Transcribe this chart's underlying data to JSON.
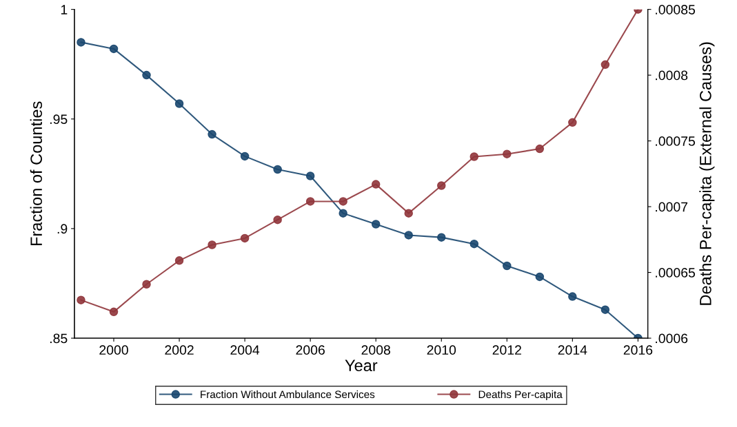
{
  "chart_data": {
    "type": "line",
    "xlabel": "Year",
    "ylabel": "Fraction of Counties",
    "y2label": "Deaths Per-capita (External Causes)",
    "x": [
      1999,
      2000,
      2001,
      2002,
      2003,
      2004,
      2005,
      2006,
      2007,
      2008,
      2009,
      2010,
      2011,
      2012,
      2013,
      2014,
      2015,
      2016
    ],
    "series": [
      {
        "name": "Fraction Without Ambulance Services",
        "color": "#1a476f",
        "values": [
          0.985,
          0.982,
          0.97,
          0.957,
          0.943,
          0.933,
          0.927,
          0.924,
          0.907,
          0.902,
          0.897,
          0.896,
          0.893,
          0.883,
          0.878,
          0.869,
          0.863,
          0.85
        ]
      },
      {
        "name": "Deaths Per-capita",
        "color": "#90353b",
        "axis": "y2",
        "values": [
          0.000629,
          0.00062,
          0.000641,
          0.000659,
          0.000671,
          0.000676,
          0.00069,
          0.000704,
          0.000704,
          0.000717,
          0.000695,
          0.000716,
          0.000738,
          0.00074,
          0.000744,
          0.000764,
          0.000808,
          0.00085
        ]
      }
    ],
    "xlim": [
      1998.8,
      2016.3
    ],
    "xticks": [
      2000,
      2002,
      2004,
      2006,
      2008,
      2010,
      2012,
      2014,
      2016
    ],
    "ylim": [
      0.85,
      1.0
    ],
    "yticks": [
      {
        "value": 0.85,
        "label": ".85"
      },
      {
        "value": 0.9,
        "label": ".9"
      },
      {
        "value": 0.95,
        "label": ".95"
      },
      1
    ],
    "y2lim": [
      0.0006,
      0.00085
    ],
    "y2ticks": [
      {
        "value": 0.0006,
        "label": ".0006"
      },
      {
        "value": 0.00065,
        "label": ".00065"
      },
      {
        "value": 0.0007,
        "label": ".0007"
      },
      {
        "value": 0.00075,
        "label": ".00075"
      },
      {
        "value": 0.0008,
        "label": ".0008"
      },
      {
        "value": 0.00085,
        "label": ".00085"
      }
    ],
    "marker": "circle",
    "legend": "bottom",
    "grid": false
  }
}
